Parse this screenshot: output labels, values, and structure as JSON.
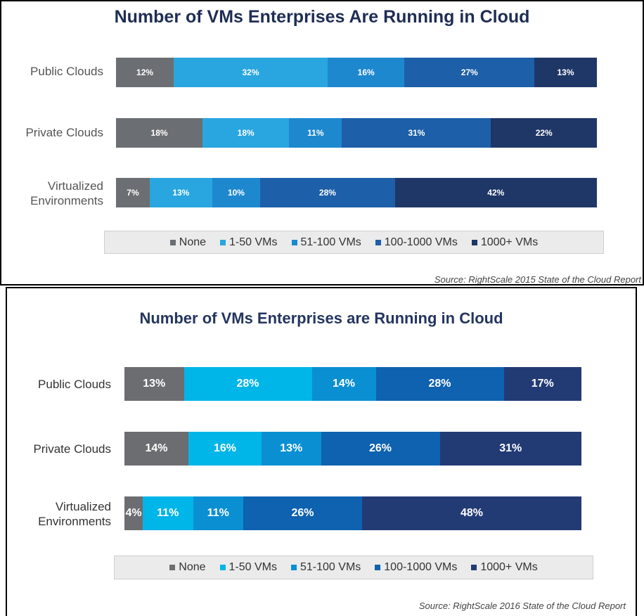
{
  "chart_data": [
    {
      "type": "bar",
      "orientation": "horizontal-stacked-100",
      "title": "Number of VMs Enterprises Are Running in Cloud",
      "categories": [
        "Public Clouds",
        "Private Clouds",
        "Virtualized Environments"
      ],
      "series": [
        {
          "name": "None",
          "values": [
            12,
            18,
            7
          ],
          "labels": [
            "12%",
            "18%",
            "7%"
          ],
          "color": "#6b6e72"
        },
        {
          "name": "1-50 VMs",
          "values": [
            32,
            18,
            13
          ],
          "labels": [
            "32%",
            "18%",
            "13%"
          ],
          "color": "#29a6df"
        },
        {
          "name": "51-100 VMs",
          "values": [
            16,
            11,
            10
          ],
          "labels": [
            "16%",
            "11%",
            "10%"
          ],
          "color": "#1e88cf"
        },
        {
          "name": "100-1000 VMs",
          "values": [
            27,
            31,
            28
          ],
          "labels": [
            "27%",
            "31%",
            "28%"
          ],
          "color": "#1d5fa8"
        },
        {
          "name": "1000+ VMs",
          "values": [
            13,
            22,
            42
          ],
          "labels": [
            "13%",
            "22%",
            "42%"
          ],
          "color": "#1f3767"
        }
      ],
      "legend": [
        "None",
        "1-50 VMs",
        "51-100 VMs",
        "100-1000 VMs",
        "1000+ VMs"
      ],
      "source": "Source: RightScale 2015 State of the Cloud Report"
    },
    {
      "type": "bar",
      "orientation": "horizontal-stacked-100",
      "title": "Number of VMs Enterprises are Running in Cloud",
      "categories": [
        "Public Clouds",
        "Private Clouds",
        "Virtualized Environments"
      ],
      "series": [
        {
          "name": "None",
          "values": [
            13,
            14,
            4
          ],
          "labels": [
            "13%",
            "14%",
            "4%"
          ],
          "color": "#6b6d70"
        },
        {
          "name": "1-50 VMs",
          "values": [
            28,
            16,
            11
          ],
          "labels": [
            "28%",
            "16%",
            "11%"
          ],
          "color": "#00b5e8"
        },
        {
          "name": "51-100 VMs",
          "values": [
            14,
            13,
            11
          ],
          "labels": [
            "14%",
            "13%",
            "11%"
          ],
          "color": "#0a8fd3"
        },
        {
          "name": "100-1000 VMs",
          "values": [
            28,
            26,
            26
          ],
          "labels": [
            "28%",
            "26%",
            "26%"
          ],
          "color": "#0e62b0"
        },
        {
          "name": "1000+ VMs",
          "values": [
            17,
            31,
            48
          ],
          "labels": [
            "17%",
            "31%",
            "48%"
          ],
          "color": "#233b75"
        }
      ],
      "legend": [
        "None",
        "1-50 VMs",
        "51-100 VMs",
        "100-1000 VMs",
        "1000+ VMs"
      ],
      "source": "Source: RightScale 2016 State of the Cloud Report"
    }
  ]
}
